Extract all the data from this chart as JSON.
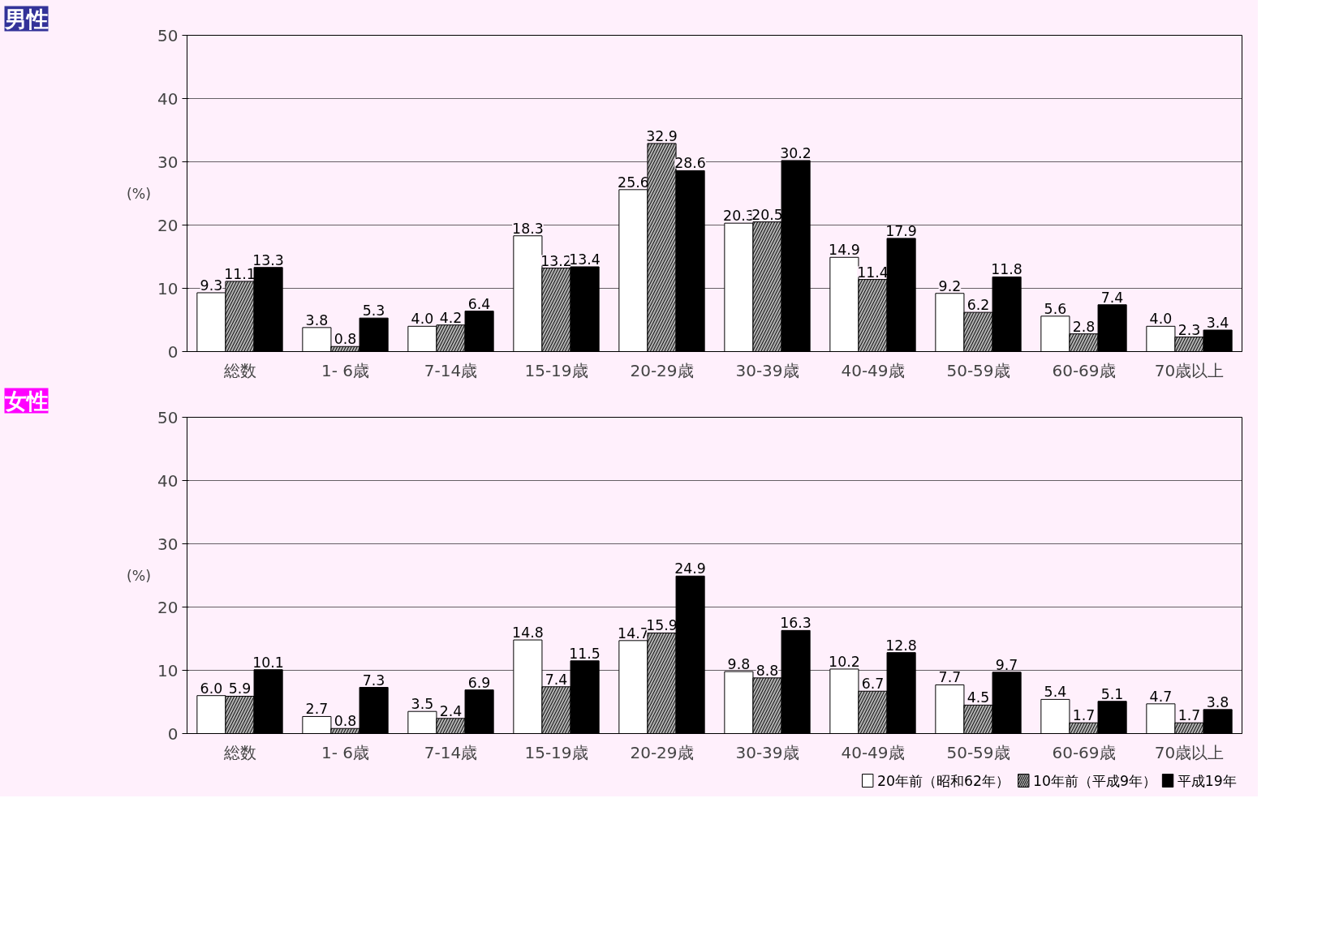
{
  "chart_data": [
    {
      "type": "bar",
      "title": "男性",
      "ylabel": "(%)",
      "categories": [
        "総数",
        "1- 6歳",
        "7-14歳",
        "15-19歳",
        "20-29歳",
        "30-39歳",
        "40-49歳",
        "50-59歳",
        "60-69歳",
        "70歳以上"
      ],
      "series": [
        {
          "color": "#ffffff",
          "values": [
            9.3,
            3.8,
            4.0,
            18.3,
            25.6,
            20.3,
            14.9,
            9.2,
            5.6,
            4.0
          ],
          "value_labels": [
            "9.3",
            "3.8",
            "4.0",
            "18.3",
            "25.6",
            "20.3",
            "14.9",
            "9.2",
            "5.6",
            "4.0"
          ]
        },
        {
          "color": "#b0b0b0",
          "values": [
            11.1,
            0.8,
            4.2,
            13.2,
            32.9,
            20.5,
            11.4,
            6.2,
            2.8,
            2.3
          ],
          "value_labels": [
            "11.1",
            "0.8",
            "4.2",
            "13.2",
            "32.9",
            "20.5",
            "11.4",
            "6.2",
            "2.8",
            "2.3"
          ]
        },
        {
          "color": "#000000",
          "values": [
            13.3,
            5.3,
            6.4,
            13.4,
            28.6,
            30.2,
            17.9,
            11.8,
            7.4,
            3.4
          ],
          "value_labels": [
            "13.3",
            "5.3",
            "6.4",
            "13.4",
            "28.6",
            "30.2",
            "17.9",
            "11.8",
            "7.4",
            "3.4"
          ]
        }
      ],
      "ylim": [
        0,
        50
      ],
      "yticks": [
        0,
        10,
        20,
        30,
        40,
        50
      ],
      "grid": "y",
      "legend": false
    },
    {
      "type": "bar",
      "title": "女性",
      "ylabel": "(%)",
      "categories": [
        "総数",
        "1- 6歳",
        "7-14歳",
        "15-19歳",
        "20-29歳",
        "30-39歳",
        "40-49歳",
        "50-59歳",
        "60-69歳",
        "70歳以上"
      ],
      "series": [
        {
          "name": "20年前（昭和62年）",
          "color": "#ffffff",
          "values": [
            6.0,
            2.7,
            3.5,
            14.8,
            14.7,
            9.8,
            10.2,
            7.7,
            5.4,
            4.7
          ],
          "value_labels": [
            "6.0",
            "2.7",
            "3.5",
            "14.8",
            "14.7",
            "9.8",
            "10.2",
            "7.7",
            "5.4",
            "4.7"
          ]
        },
        {
          "name": "10年前（平成9年）",
          "color": "#b0b0b0",
          "values": [
            5.9,
            0.8,
            2.4,
            7.4,
            15.9,
            8.8,
            6.7,
            4.5,
            1.7,
            1.7
          ],
          "value_labels": [
            "5.9",
            "0.8",
            "2.4",
            "7.4",
            "15.9",
            "8.8",
            "6.7",
            "4.5",
            "1.7",
            "1.7"
          ]
        },
        {
          "name": "平成19年",
          "color": "#000000",
          "values": [
            10.1,
            7.3,
            6.9,
            11.5,
            24.9,
            16.3,
            12.8,
            9.7,
            5.1,
            3.8
          ],
          "value_labels": [
            "10.1",
            "7.3",
            "6.9",
            "11.5",
            "24.9",
            "16.3",
            "12.8",
            "9.7",
            "5.1",
            "3.8"
          ]
        }
      ],
      "ylim": [
        0,
        50
      ],
      "yticks": [
        0,
        10,
        20,
        30,
        40,
        50
      ],
      "grid": "y",
      "legend": "bottom right"
    }
  ]
}
